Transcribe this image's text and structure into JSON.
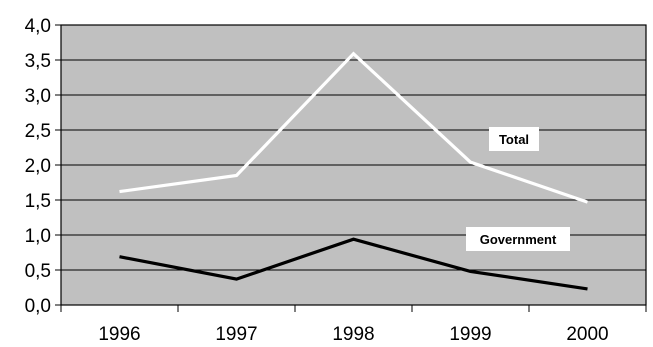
{
  "chart_data": {
    "type": "line",
    "title": "",
    "xlabel": "",
    "ylabel": "",
    "categories": [
      "1996",
      "1997",
      "1998",
      "1999",
      "2000"
    ],
    "ylim": [
      0,
      4
    ],
    "yticks": [
      0,
      0.5,
      1,
      1.5,
      2,
      2.5,
      3,
      3.5,
      4
    ],
    "ytick_labels": [
      "0,0",
      "0,5",
      "1,0",
      "1,5",
      "2,0",
      "2,5",
      "3,0",
      "3,5",
      "4,0"
    ],
    "grid": true,
    "plot_background": "#c0c0c0",
    "series": [
      {
        "name": "Total",
        "values": [
          1.62,
          1.85,
          3.59,
          2.04,
          1.47
        ],
        "color": "#ffffff"
      },
      {
        "name": "Government",
        "values": [
          0.69,
          0.37,
          0.94,
          0.48,
          0.23
        ],
        "color": "#000000"
      }
    ]
  }
}
